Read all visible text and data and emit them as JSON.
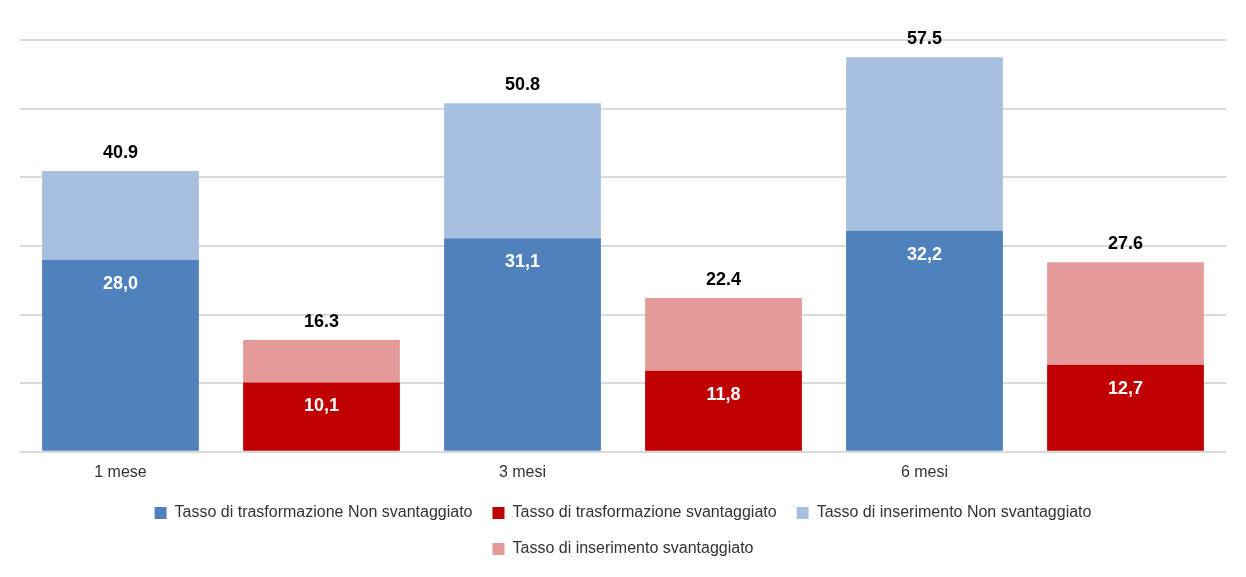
{
  "chart_data": {
    "type": "bar",
    "stacked": true,
    "categories": [
      "1 mese",
      null,
      "3 mesi",
      null,
      "6 mesi",
      null
    ],
    "series": [
      {
        "name": "Tasso di trasformazione Non svantaggiato",
        "color": "#4f81bd",
        "values": [
          28.0,
          null,
          31.1,
          null,
          32.2,
          null
        ],
        "value_labels": [
          "28,0",
          null,
          "31,1",
          null,
          "32,2",
          null
        ]
      },
      {
        "name": "Tasso di trasformazione svantaggiato",
        "color": "#c00000",
        "values": [
          null,
          10.1,
          null,
          11.8,
          null,
          12.7
        ],
        "value_labels": [
          null,
          "10,1",
          null,
          "11,8",
          null,
          "12,7"
        ]
      },
      {
        "name": "Tasso di inserimento Non svantaggiato",
        "color": "#a7c0e0",
        "values": [
          12.9,
          null,
          19.7,
          null,
          25.3,
          null
        ]
      },
      {
        "name": "Tasso di inserimento svantaggiato",
        "color": "#e59a9a",
        "values": [
          null,
          6.2,
          null,
          10.6,
          null,
          14.9
        ]
      }
    ],
    "totals": [
      "40.9",
      "16.3",
      "50.8",
      "22.4",
      "57.5",
      "27.6"
    ],
    "ylim": [
      0,
      60
    ],
    "yticks": [
      {
        "value": 0,
        "label": null
      },
      {
        "value": 10,
        "label": null
      },
      {
        "value": 20,
        "label": null
      },
      {
        "value": 30,
        "label": null
      },
      {
        "value": 40,
        "label": null
      },
      {
        "value": 50,
        "label": null
      },
      {
        "value": 60,
        "label": null
      }
    ],
    "grid": "y",
    "tick_labels": "x",
    "legend": "bottom"
  }
}
